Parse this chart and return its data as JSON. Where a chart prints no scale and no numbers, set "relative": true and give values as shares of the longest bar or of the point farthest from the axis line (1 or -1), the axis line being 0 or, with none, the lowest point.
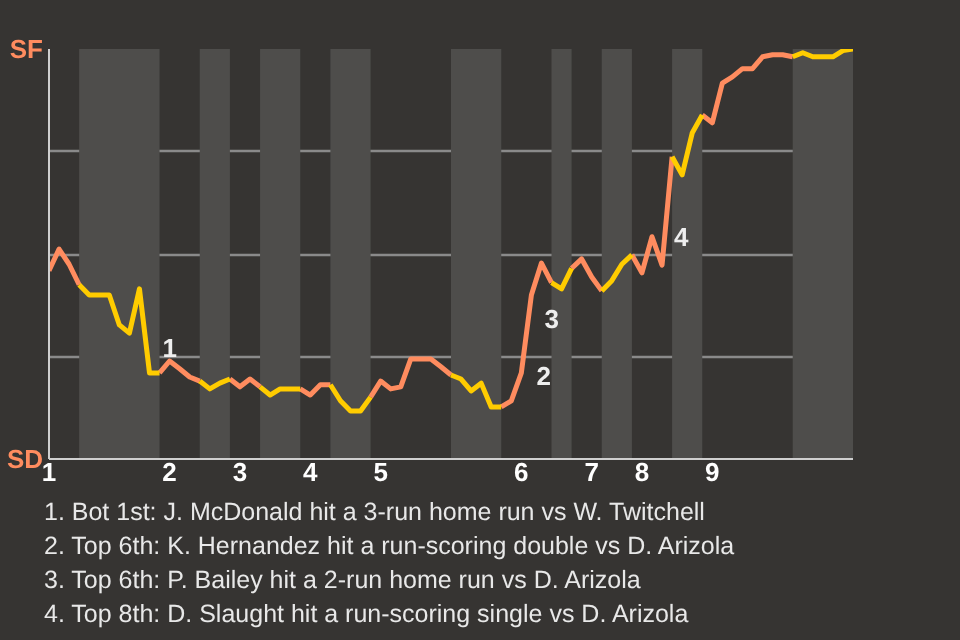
{
  "chart_data": {
    "type": "line",
    "relative": true,
    "grid": "y",
    "categories": [
      "1",
      null,
      null,
      null,
      null,
      null,
      null,
      null,
      null,
      null,
      null,
      null,
      "2",
      null,
      null,
      null,
      null,
      null,
      null,
      "3",
      null,
      null,
      null,
      null,
      null,
      null,
      "4",
      null,
      null,
      null,
      null,
      null,
      null,
      "5",
      null,
      null,
      null,
      null,
      null,
      null,
      null,
      null,
      null,
      null,
      null,
      null,
      null,
      "6",
      null,
      null,
      null,
      null,
      null,
      null,
      "7",
      null,
      null,
      null,
      null,
      "8",
      null,
      null,
      null,
      null,
      null,
      null,
      "9",
      null,
      null,
      null,
      null,
      null,
      null,
      null,
      null,
      null,
      null,
      null,
      null,
      null,
      null
    ],
    "series": [
      {
        "color": "#ff8c5f",
        "values": [
          0.459,
          0.512,
          0.475,
          0.425,
          null,
          null,
          null,
          null,
          null,
          null,
          null,
          0.21,
          0.239,
          0.22,
          0.2,
          0.19,
          null,
          null,
          0.195,
          0.176,
          0.195,
          0.176,
          null,
          null,
          null,
          0.171,
          0.156,
          0.181,
          0.181,
          null,
          null,
          null,
          0.151,
          0.19,
          0.171,
          0.176,
          0.244,
          0.244,
          0.244,
          0.225,
          0.205,
          null,
          null,
          null,
          null,
          0.127,
          0.142,
          0.21,
          0.4,
          0.478,
          0.43,
          null,
          0.465,
          0.488,
          0.444,
          0.41,
          null,
          null,
          0.498,
          0.454,
          0.542,
          0.473,
          0.737,
          null,
          null,
          0.839,
          0.82,
          0.917,
          0.932,
          0.952,
          0.952,
          0.981,
          0.986,
          0.986,
          0.981,
          null,
          null,
          null,
          null,
          null,
          null
        ]
      },
      {
        "color": "#ffcc00",
        "values": [
          null,
          null,
          null,
          0.425,
          0.4,
          0.4,
          0.4,
          0.327,
          0.307,
          0.415,
          0.21,
          0.21,
          null,
          null,
          null,
          0.19,
          0.171,
          0.185,
          0.195,
          null,
          null,
          0.176,
          0.156,
          0.171,
          0.171,
          0.171,
          null,
          null,
          0.181,
          0.142,
          0.117,
          0.117,
          0.151,
          null,
          null,
          null,
          null,
          null,
          null,
          null,
          0.205,
          0.195,
          0.166,
          0.185,
          0.127,
          0.127,
          null,
          null,
          null,
          null,
          0.43,
          0.415,
          0.465,
          null,
          null,
          0.41,
          0.435,
          0.475,
          0.498,
          null,
          null,
          null,
          0.737,
          0.693,
          0.795,
          0.839,
          null,
          null,
          null,
          null,
          null,
          null,
          null,
          null,
          0.981,
          0.991,
          0.981,
          0.981,
          0.981,
          0.996,
          1
        ]
      }
    ],
    "annotations": [
      "SF",
      "SD",
      "1",
      "2",
      "3",
      "4",
      "1. Bot 1st: J. McDonald hit a 3-run home run vs W. Twitchell",
      "2. Top 6th: K. Hernandez hit a run-scoring double vs D. Arizola",
      "3. Top 6th: P. Bailey hit a 2-run home run vs D. Arizola",
      "4. Top 8th: D. Slaught hit a run-scoring single vs D. Arizola"
    ]
  }
}
